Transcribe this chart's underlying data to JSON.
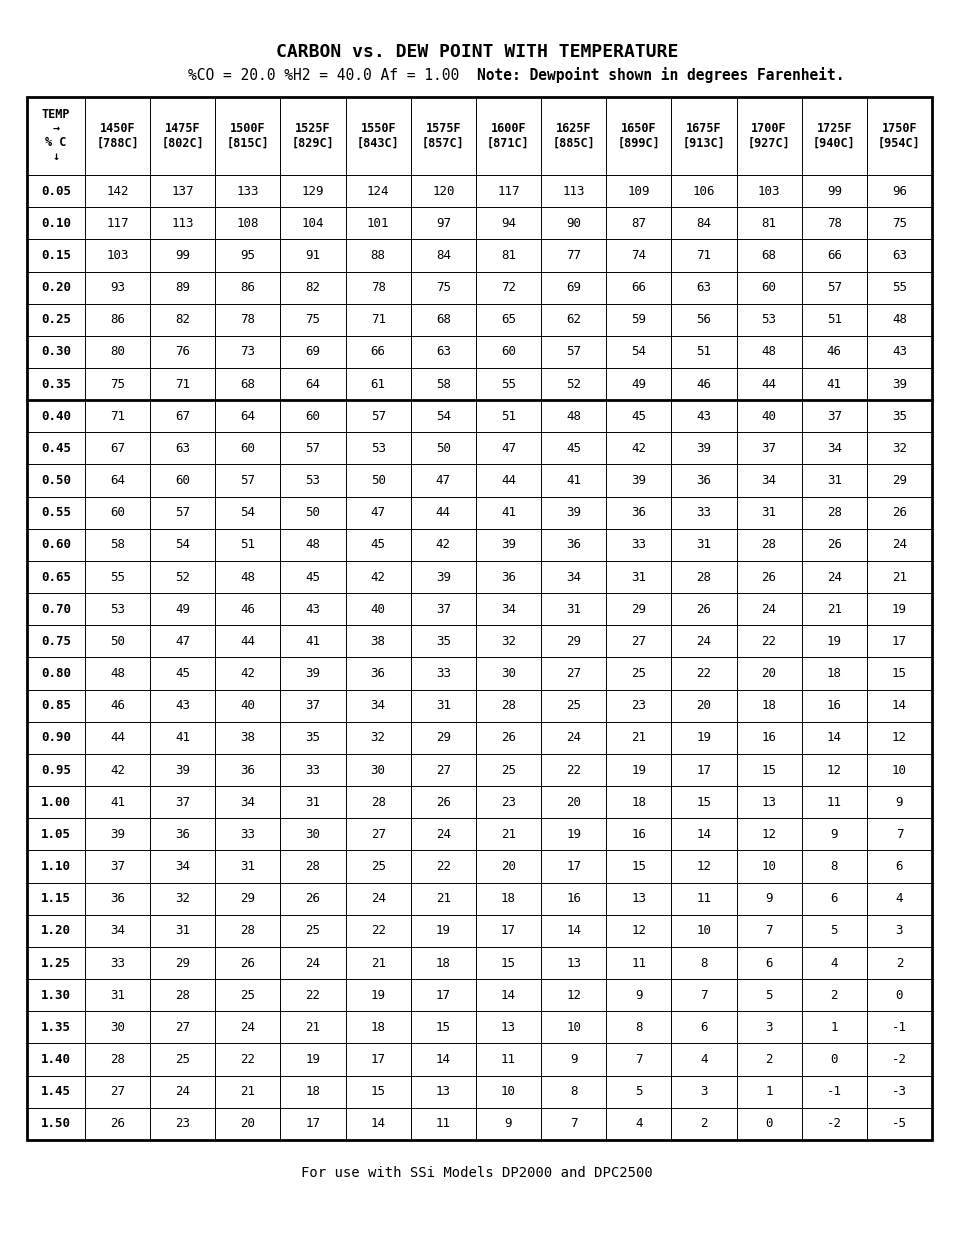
{
  "title": "CARBON vs. DEW POINT WITH TEMPERATURE",
  "subtitle_normal": "%CO = 20.0 %H2 = 40.0 Af = 1.00  ",
  "subtitle_bold": "Note: Dewpoint shown in degrees Farenheit.",
  "footer": "For use with SSi Models DP2000 and DPC2500",
  "col_headers_line1": [
    "TEMP",
    "1450F",
    "1475F",
    "1500F",
    "1525F",
    "1550F",
    "1575F",
    "1600F",
    "1625F",
    "1650F",
    "1675F",
    "1700F",
    "1725F",
    "1750F"
  ],
  "col_headers_line2": [
    "→",
    "[788C]",
    "[802C]",
    "[815C]",
    "[829C]",
    "[843C]",
    "[857C]",
    "[871C]",
    "[885C]",
    "[899C]",
    "[913C]",
    "[927C]",
    "[940C]",
    "[954C]"
  ],
  "col_headers_line3": [
    "% C",
    "",
    "",
    "",
    "",
    "",
    "",
    "",
    "",
    "",
    "",
    "",
    "",
    ""
  ],
  "col_headers_line4": [
    "↓",
    "",
    "",
    "",
    "",
    "",
    "",
    "",
    "",
    "",
    "",
    "",
    "",
    ""
  ],
  "row_labels": [
    "0.05",
    "0.10",
    "0.15",
    "0.20",
    "0.25",
    "0.30",
    "0.35",
    "0.40",
    "0.45",
    "0.50",
    "0.55",
    "0.60",
    "0.65",
    "0.70",
    "0.75",
    "0.80",
    "0.85",
    "0.90",
    "0.95",
    "1.00",
    "1.05",
    "1.10",
    "1.15",
    "1.20",
    "1.25",
    "1.30",
    "1.35",
    "1.40",
    "1.45",
    "1.50"
  ],
  "table_data": [
    [
      142,
      137,
      133,
      129,
      124,
      120,
      117,
      113,
      109,
      106,
      103,
      99,
      96
    ],
    [
      117,
      113,
      108,
      104,
      101,
      97,
      94,
      90,
      87,
      84,
      81,
      78,
      75
    ],
    [
      103,
      99,
      95,
      91,
      88,
      84,
      81,
      77,
      74,
      71,
      68,
      66,
      63
    ],
    [
      93,
      89,
      86,
      82,
      78,
      75,
      72,
      69,
      66,
      63,
      60,
      57,
      55
    ],
    [
      86,
      82,
      78,
      75,
      71,
      68,
      65,
      62,
      59,
      56,
      53,
      51,
      48
    ],
    [
      80,
      76,
      73,
      69,
      66,
      63,
      60,
      57,
      54,
      51,
      48,
      46,
      43
    ],
    [
      75,
      71,
      68,
      64,
      61,
      58,
      55,
      52,
      49,
      46,
      44,
      41,
      39
    ],
    [
      71,
      67,
      64,
      60,
      57,
      54,
      51,
      48,
      45,
      43,
      40,
      37,
      35
    ],
    [
      67,
      63,
      60,
      57,
      53,
      50,
      47,
      45,
      42,
      39,
      37,
      34,
      32
    ],
    [
      64,
      60,
      57,
      53,
      50,
      47,
      44,
      41,
      39,
      36,
      34,
      31,
      29
    ],
    [
      60,
      57,
      54,
      50,
      47,
      44,
      41,
      39,
      36,
      33,
      31,
      28,
      26
    ],
    [
      58,
      54,
      51,
      48,
      45,
      42,
      39,
      36,
      33,
      31,
      28,
      26,
      24
    ],
    [
      55,
      52,
      48,
      45,
      42,
      39,
      36,
      34,
      31,
      28,
      26,
      24,
      21
    ],
    [
      53,
      49,
      46,
      43,
      40,
      37,
      34,
      31,
      29,
      26,
      24,
      21,
      19
    ],
    [
      50,
      47,
      44,
      41,
      38,
      35,
      32,
      29,
      27,
      24,
      22,
      19,
      17
    ],
    [
      48,
      45,
      42,
      39,
      36,
      33,
      30,
      27,
      25,
      22,
      20,
      18,
      15
    ],
    [
      46,
      43,
      40,
      37,
      34,
      31,
      28,
      25,
      23,
      20,
      18,
      16,
      14
    ],
    [
      44,
      41,
      38,
      35,
      32,
      29,
      26,
      24,
      21,
      19,
      16,
      14,
      12
    ],
    [
      42,
      39,
      36,
      33,
      30,
      27,
      25,
      22,
      19,
      17,
      15,
      12,
      10
    ],
    [
      41,
      37,
      34,
      31,
      28,
      26,
      23,
      20,
      18,
      15,
      13,
      11,
      9
    ],
    [
      39,
      36,
      33,
      30,
      27,
      24,
      21,
      19,
      16,
      14,
      12,
      9,
      7
    ],
    [
      37,
      34,
      31,
      28,
      25,
      22,
      20,
      17,
      15,
      12,
      10,
      8,
      6
    ],
    [
      36,
      32,
      29,
      26,
      24,
      21,
      18,
      16,
      13,
      11,
      9,
      6,
      4
    ],
    [
      34,
      31,
      28,
      25,
      22,
      19,
      17,
      14,
      12,
      10,
      7,
      5,
      3
    ],
    [
      33,
      29,
      26,
      24,
      21,
      18,
      15,
      13,
      11,
      8,
      6,
      4,
      2
    ],
    [
      31,
      28,
      25,
      22,
      19,
      17,
      14,
      12,
      9,
      7,
      5,
      2,
      0
    ],
    [
      30,
      27,
      24,
      21,
      18,
      15,
      13,
      10,
      8,
      6,
      3,
      1,
      -1
    ],
    [
      28,
      25,
      22,
      19,
      17,
      14,
      11,
      9,
      7,
      4,
      2,
      0,
      -2
    ],
    [
      27,
      24,
      21,
      18,
      15,
      13,
      10,
      8,
      5,
      3,
      1,
      -1,
      -3
    ],
    [
      26,
      23,
      20,
      17,
      14,
      11,
      9,
      7,
      4,
      2,
      0,
      -2,
      -5
    ]
  ],
  "background_color": "#ffffff",
  "title_fontsize": 13,
  "subtitle_fontsize": 10.5,
  "header_fontsize": 8.5,
  "data_fontsize": 9,
  "footer_fontsize": 10
}
